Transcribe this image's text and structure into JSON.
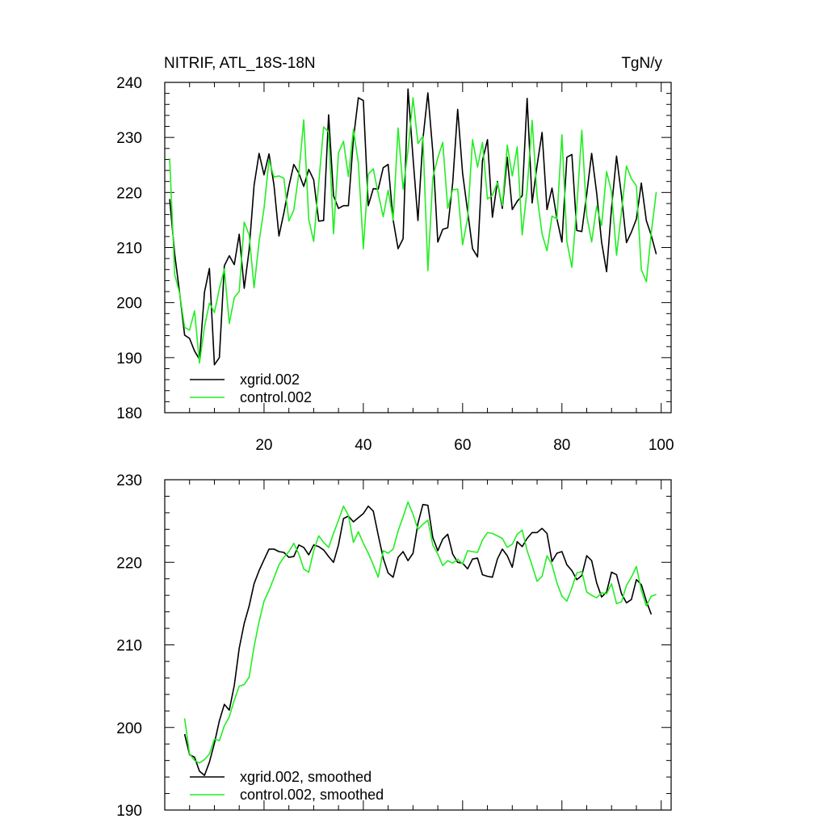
{
  "chart_data": [
    {
      "type": "line",
      "title": "NITRIF, ATL_18S-18N",
      "units": "TgN/y",
      "xlim": [
        0,
        102
      ],
      "ylim": [
        180,
        240
      ],
      "x_ticks": [
        20,
        40,
        60,
        80,
        100
      ],
      "x_tick_labels": [
        "20",
        "40",
        "60",
        "80",
        "100"
      ],
      "y_ticks": [
        180,
        190,
        200,
        210,
        220,
        230,
        240
      ],
      "y_tick_labels": [
        "180",
        "190",
        "200",
        "210",
        "220",
        "230",
        "240"
      ],
      "legend_position": "bottom-left",
      "series": [
        {
          "name": "xgrid.002",
          "color": "#000000",
          "x_start": 1,
          "values": [
            218.8,
            208.8,
            201.8,
            194.1,
            193.5,
            191.2,
            189.7,
            201.9,
            206.2,
            188.7,
            190.0,
            206.7,
            208.5,
            206.9,
            212.4,
            202.6,
            209.6,
            221.3,
            227.1,
            223.2,
            227.0,
            221.4,
            212.1,
            216.3,
            221.1,
            225.1,
            223.5,
            221.1,
            224.2,
            222.3,
            214.8,
            214.9,
            234.1,
            219.4,
            217.1,
            217.6,
            217.6,
            229.7,
            237.2,
            236.7,
            217.6,
            220.7,
            220.6,
            224.5,
            225.1,
            215.0,
            209.8,
            211.6,
            238.8,
            226.3,
            214.9,
            229.6,
            238.1,
            227.4,
            211.0,
            213.3,
            213.6,
            221.7,
            235.1,
            223.5,
            216.6,
            209.8,
            208.3,
            225.8,
            229.6,
            215.5,
            222.0,
            217.1,
            226.4,
            216.9,
            218.4,
            219.4,
            237.1,
            218.1,
            224.9,
            230.9,
            216.9,
            220.8,
            215.2,
            211.0,
            226.4,
            226.9,
            213.1,
            212.9,
            219.7,
            227.1,
            219.9,
            211.0,
            205.6,
            217.2,
            226.6,
            219.5,
            210.9,
            212.8,
            215.2,
            221.7,
            214.9,
            212.2,
            208.8
          ]
        },
        {
          "name": "control.002",
          "color": "#22ee22",
          "x_start": 1,
          "values": [
            226.2,
            205.1,
            201.7,
            195.5,
            195.0,
            198.5,
            189.0,
            195.6,
            199.9,
            198.2,
            202.5,
            206.1,
            196.2,
            200.9,
            202.0,
            214.6,
            212.3,
            202.7,
            211.1,
            217.1,
            225.9,
            222.8,
            223.0,
            222.6,
            214.8,
            216.8,
            223.4,
            233.2,
            215.1,
            211.1,
            221.6,
            231.9,
            231.0,
            212.5,
            227.2,
            229.3,
            222.9,
            231.4,
            225.4,
            209.8,
            223.3,
            224.3,
            219.8,
            215.6,
            220.4,
            215.0,
            231.7,
            220.6,
            227.6,
            237.2,
            228.9,
            230.2,
            205.8,
            222.7,
            226.3,
            229.1,
            217.1,
            220.5,
            220.6,
            210.5,
            215.3,
            229.6,
            224.6,
            229.1,
            218.8,
            219.5,
            221.8,
            217.6,
            228.6,
            223.0,
            228.3,
            212.3,
            220.6,
            233.1,
            219.4,
            212.5,
            209.4,
            215.7,
            215.2,
            230.5,
            211.1,
            206.4,
            217.3,
            231.3,
            215.8,
            211.0,
            217.5,
            214.0,
            223.8,
            220.1,
            208.6,
            216.4,
            224.8,
            222.5,
            221.2,
            206.0,
            203.8,
            212.7,
            220.1
          ]
        }
      ]
    },
    {
      "type": "line",
      "title": "",
      "xlim": [
        0,
        102
      ],
      "ylim": [
        190,
        230
      ],
      "x_ticks": [
        20,
        40,
        60,
        80,
        100
      ],
      "x_tick_labels": [
        "",
        "",
        "",
        "",
        ""
      ],
      "y_ticks": [
        190,
        200,
        210,
        220,
        230
      ],
      "y_tick_labels": [
        "190",
        "200",
        "210",
        "220",
        "230"
      ],
      "legend_position": "bottom-left",
      "series": [
        {
          "name": "xgrid.002, smoothed",
          "color": "#000000",
          "x_start": 4,
          "values": [
            199.2,
            196.7,
            196.4,
            194.7,
            194.2,
            195.8,
            198.1,
            200.8,
            202.8,
            202.1,
            205.1,
            209.6,
            212.6,
            214.7,
            217.4,
            219.0,
            220.3,
            221.6,
            221.6,
            221.3,
            221.2,
            220.6,
            220.7,
            222.1,
            221.8,
            220.9,
            222.1,
            221.9,
            221.5,
            220.7,
            220.0,
            222.1,
            225.3,
            225.6,
            224.9,
            225.4,
            225.9,
            226.8,
            226.2,
            223.3,
            220.5,
            218.7,
            218.2,
            220.6,
            221.3,
            220.2,
            221.1,
            224.7,
            227.0,
            226.9,
            223.0,
            221.4,
            222.8,
            223.4,
            221.0,
            220.0,
            219.9,
            219.2,
            220.4,
            220.5,
            218.5,
            218.3,
            218.2,
            220.4,
            221.6,
            220.8,
            219.4,
            222.5,
            221.9,
            222.9,
            223.6,
            223.6,
            224.1,
            223.5,
            220.1,
            221.1,
            221.3,
            219.7,
            219.0,
            217.9,
            218.4,
            220.8,
            220.2,
            217.5,
            215.8,
            216.4,
            218.8,
            218.5,
            216.2,
            215.1,
            215.5,
            217.9,
            217.3,
            215.3,
            213.7
          ]
        },
        {
          "name": "control.002, smoothed",
          "color": "#22ee22",
          "x_start": 4,
          "values": [
            201.1,
            196.8,
            196.0,
            195.7,
            196.1,
            196.8,
            198.6,
            198.4,
            200.2,
            201.3,
            203.3,
            205.0,
            205.2,
            206.1,
            209.8,
            212.8,
            215.3,
            216.6,
            218.1,
            219.7,
            220.6,
            221.3,
            222.3,
            221.0,
            219.2,
            218.8,
            221.4,
            223.2,
            222.4,
            221.8,
            223.5,
            225.1,
            226.8,
            225.7,
            222.4,
            223.7,
            222.3,
            221.1,
            219.7,
            218.2,
            221.4,
            221.1,
            221.6,
            223.8,
            225.5,
            227.3,
            225.8,
            224.0,
            224.6,
            225.1,
            222.1,
            221.0,
            219.6,
            220.2,
            219.9,
            220.4,
            219.8,
            221.4,
            221.3,
            221.2,
            222.7,
            223.6,
            223.5,
            223.2,
            222.9,
            221.8,
            222.2,
            223.4,
            223.9,
            221.4,
            219.6,
            217.7,
            218.3,
            220.8,
            219.7,
            217.5,
            215.9,
            215.3,
            216.9,
            218.7,
            218.9,
            216.4,
            216.0,
            215.7,
            216.3,
            216.2,
            217.4,
            215.0,
            215.2,
            217.2,
            218.2,
            219.5,
            216.6,
            214.7,
            215.9,
            216.1
          ]
        }
      ]
    }
  ]
}
